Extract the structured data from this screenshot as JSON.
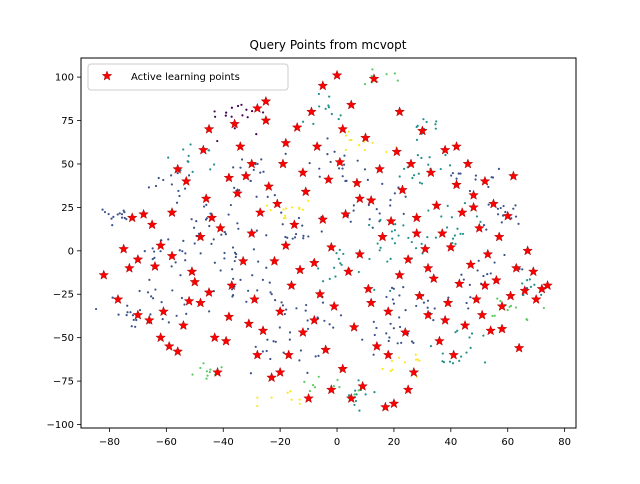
{
  "chart_data": {
    "type": "scatter",
    "title": "Query Points from mcvopt",
    "xlabel": "",
    "ylabel": "",
    "xlim": [
      -90,
      84
    ],
    "ylim": [
      -102,
      111
    ],
    "xticks": [
      -80,
      -60,
      -40,
      -20,
      0,
      20,
      40,
      60,
      80
    ],
    "xtick_labels": [
      "−80",
      "−60",
      "−40",
      "−20",
      "0",
      "20",
      "40",
      "60",
      "80"
    ],
    "yticks": [
      -100,
      -75,
      -50,
      -25,
      0,
      25,
      50,
      75,
      100
    ],
    "ytick_labels": [
      "−100",
      "−75",
      "−50",
      "−25",
      "0",
      "25",
      "50",
      "75",
      "100"
    ],
    "grid": false,
    "legend": {
      "location": "upper-left",
      "entries": [
        "Active learning points"
      ]
    },
    "colors": {
      "marker": "#ff0000",
      "marker_edge": "#8b0000",
      "background_palette": [
        "#440154",
        "#3b528b",
        "#21918c",
        "#5ec962",
        "#fde725"
      ]
    },
    "background_clusters": [
      {
        "cx": -78,
        "cy": 20,
        "n": 14,
        "s": 2,
        "c": 1
      },
      {
        "cx": -72,
        "cy": -38,
        "n": 14,
        "s": 3,
        "c": 1
      },
      {
        "cx": -60,
        "cy": 38,
        "n": 12,
        "s": 3,
        "c": 1
      },
      {
        "cx": -58,
        "cy": -28,
        "n": 18,
        "s": 4,
        "c": 1
      },
      {
        "cx": -50,
        "cy": 52,
        "n": 12,
        "s": 3,
        "c": 2
      },
      {
        "cx": -48,
        "cy": 15,
        "n": 18,
        "s": 4,
        "c": 1
      },
      {
        "cx": -44,
        "cy": -68,
        "n": 10,
        "s": 2,
        "c": 3
      },
      {
        "cx": -40,
        "cy": 0,
        "n": 18,
        "s": 4,
        "c": 1
      },
      {
        "cx": -35,
        "cy": 78,
        "n": 16,
        "s": 4,
        "c": 0
      },
      {
        "cx": -30,
        "cy": -20,
        "n": 18,
        "s": 4,
        "c": 1
      },
      {
        "cx": -25,
        "cy": 40,
        "n": 18,
        "s": 4,
        "c": 1
      },
      {
        "cx": -20,
        "cy": -60,
        "n": 16,
        "s": 4,
        "c": 1
      },
      {
        "cx": -12,
        "cy": 10,
        "n": 18,
        "s": 4,
        "c": 1
      },
      {
        "cx": -10,
        "cy": -35,
        "n": 18,
        "s": 4,
        "c": 1
      },
      {
        "cx": -5,
        "cy": 80,
        "n": 12,
        "s": 3,
        "c": 2
      },
      {
        "cx": 0,
        "cy": 50,
        "n": 18,
        "s": 4,
        "c": 1
      },
      {
        "cx": 5,
        "cy": -10,
        "n": 18,
        "s": 4,
        "c": 2
      },
      {
        "cx": 8,
        "cy": -85,
        "n": 12,
        "s": 3,
        "c": 2
      },
      {
        "cx": 12,
        "cy": 25,
        "n": 18,
        "s": 4,
        "c": 1
      },
      {
        "cx": 18,
        "cy": -50,
        "n": 18,
        "s": 4,
        "c": 1
      },
      {
        "cx": 20,
        "cy": 5,
        "n": 18,
        "s": 4,
        "c": 2
      },
      {
        "cx": 28,
        "cy": 45,
        "n": 16,
        "s": 4,
        "c": 2
      },
      {
        "cx": 30,
        "cy": -30,
        "n": 18,
        "s": 4,
        "c": 1
      },
      {
        "cx": 32,
        "cy": 70,
        "n": 10,
        "s": 2,
        "c": 2
      },
      {
        "cx": 40,
        "cy": 15,
        "n": 18,
        "s": 4,
        "c": 2
      },
      {
        "cx": 42,
        "cy": -55,
        "n": 16,
        "s": 4,
        "c": 2
      },
      {
        "cx": 48,
        "cy": 40,
        "n": 14,
        "s": 4,
        "c": 1
      },
      {
        "cx": 52,
        "cy": -15,
        "n": 16,
        "s": 4,
        "c": 1
      },
      {
        "cx": 58,
        "cy": 20,
        "n": 14,
        "s": 3,
        "c": 1
      },
      {
        "cx": 62,
        "cy": -35,
        "n": 12,
        "s": 3,
        "c": 3
      },
      {
        "cx": 68,
        "cy": -20,
        "n": 8,
        "s": 2,
        "c": 2
      },
      {
        "cx": 0,
        "cy": -75,
        "n": 12,
        "s": 3,
        "c": 3
      },
      {
        "cx": -20,
        "cy": -85,
        "n": 8,
        "s": 2,
        "c": 4
      },
      {
        "cx": 15,
        "cy": 100,
        "n": 8,
        "s": 2,
        "c": 3
      },
      {
        "cx": -60,
        "cy": 0,
        "n": 14,
        "s": 3,
        "c": 1
      },
      {
        "cx": 10,
        "cy": 60,
        "n": 12,
        "s": 3,
        "c": 4
      },
      {
        "cx": -15,
        "cy": 25,
        "n": 12,
        "s": 3,
        "c": 4
      },
      {
        "cx": 25,
        "cy": -65,
        "n": 12,
        "s": 3,
        "c": 4
      }
    ],
    "active_points": [
      [
        -82,
        -14
      ],
      [
        -75,
        1
      ],
      [
        -73,
        -10
      ],
      [
        -72,
        19
      ],
      [
        -70,
        -37
      ],
      [
        -68,
        21
      ],
      [
        -66,
        -40
      ],
      [
        -64,
        -9
      ],
      [
        -62,
        3
      ],
      [
        -61,
        -35
      ],
      [
        -59,
        -55
      ],
      [
        -58,
        -3
      ],
      [
        -56,
        -58
      ],
      [
        -56,
        47
      ],
      [
        -54,
        -43
      ],
      [
        -52,
        -29
      ],
      [
        -51,
        -12
      ],
      [
        -50,
        -18
      ],
      [
        -48,
        -30
      ],
      [
        -47,
        58
      ],
      [
        -46,
        30
      ],
      [
        -45,
        -24
      ],
      [
        -44,
        19
      ],
      [
        -42,
        -70
      ],
      [
        -41,
        13
      ],
      [
        -39,
        -52
      ],
      [
        -38,
        42
      ],
      [
        -37,
        -20
      ],
      [
        -36,
        73
      ],
      [
        -34,
        60
      ],
      [
        -33,
        -6
      ],
      [
        -32,
        43
      ],
      [
        -31,
        -42
      ],
      [
        -30,
        10
      ],
      [
        -29,
        -28
      ],
      [
        -28,
        82
      ],
      [
        -27,
        22
      ],
      [
        -26,
        -46
      ],
      [
        -25,
        86
      ],
      [
        -24,
        37
      ],
      [
        -23,
        -73
      ],
      [
        -22,
        -6
      ],
      [
        -21,
        27
      ],
      [
        -20,
        -35
      ],
      [
        -19,
        50
      ],
      [
        -18,
        3
      ],
      [
        -17,
        -60
      ],
      [
        -16,
        -20
      ],
      [
        -15,
        15
      ],
      [
        -14,
        71
      ],
      [
        -13,
        -11
      ],
      [
        -12,
        -47
      ],
      [
        -11,
        34
      ],
      [
        -10,
        -85
      ],
      [
        -9,
        80
      ],
      [
        -8,
        -7
      ],
      [
        -7,
        60
      ],
      [
        -6,
        -25
      ],
      [
        -5,
        18
      ],
      [
        -4,
        -57
      ],
      [
        -3,
        41
      ],
      [
        -2,
        2
      ],
      [
        -1,
        -32
      ],
      [
        0,
        101
      ],
      [
        1,
        51
      ],
      [
        2,
        -68
      ],
      [
        3,
        21
      ],
      [
        4,
        -12
      ],
      [
        5,
        84
      ],
      [
        6,
        -44
      ],
      [
        7,
        39
      ],
      [
        8,
        -2
      ],
      [
        9,
        -78
      ],
      [
        10,
        65
      ],
      [
        11,
        -22
      ],
      [
        12,
        29
      ],
      [
        13,
        99
      ],
      [
        14,
        -55
      ],
      [
        15,
        47
      ],
      [
        16,
        8
      ],
      [
        17,
        -90
      ],
      [
        18,
        -35
      ],
      [
        19,
        17
      ],
      [
        20,
        -88
      ],
      [
        21,
        57
      ],
      [
        22,
        -14
      ],
      [
        23,
        35
      ],
      [
        24,
        -47
      ],
      [
        25,
        -5
      ],
      [
        26,
        50
      ],
      [
        27,
        -70
      ],
      [
        28,
        19
      ],
      [
        29,
        -26
      ],
      [
        30,
        69
      ],
      [
        31,
        1
      ],
      [
        32,
        -37
      ],
      [
        33,
        45
      ],
      [
        34,
        -16
      ],
      [
        35,
        26
      ],
      [
        36,
        -52
      ],
      [
        37,
        10
      ],
      [
        38,
        58
      ],
      [
        39,
        -30
      ],
      [
        40,
        2
      ],
      [
        41,
        -60
      ],
      [
        42,
        38
      ],
      [
        43,
        -19
      ],
      [
        44,
        22
      ],
      [
        45,
        -43
      ],
      [
        46,
        50
      ],
      [
        47,
        -8
      ],
      [
        48,
        32
      ],
      [
        49,
        -28
      ],
      [
        50,
        13
      ],
      [
        51,
        -37
      ],
      [
        52,
        40
      ],
      [
        53,
        -2
      ],
      [
        54,
        -46
      ],
      [
        55,
        27
      ],
      [
        56,
        -17
      ],
      [
        57,
        8
      ],
      [
        58,
        -32
      ],
      [
        60,
        20
      ],
      [
        61,
        -26
      ],
      [
        62,
        43
      ],
      [
        63,
        -10
      ],
      [
        64,
        -56
      ],
      [
        66,
        -23
      ],
      [
        67,
        0
      ],
      [
        69,
        -12
      ],
      [
        70,
        -28
      ],
      [
        72,
        -22
      ],
      [
        74,
        -20
      ],
      [
        -65,
        15
      ],
      [
        -53,
        40
      ],
      [
        -43,
        -50
      ],
      [
        -35,
        33
      ],
      [
        -28,
        -60
      ],
      [
        -18,
        62
      ],
      [
        -8,
        -40
      ],
      [
        2,
        70
      ],
      [
        12,
        -30
      ],
      [
        22,
        80
      ],
      [
        32,
        -10
      ],
      [
        42,
        60
      ],
      [
        52,
        -20
      ],
      [
        -70,
        -5
      ],
      [
        -58,
        22
      ],
      [
        -48,
        8
      ],
      [
        -38,
        -38
      ],
      [
        -30,
        50
      ],
      [
        -20,
        -70
      ],
      [
        -12,
        45
      ],
      [
        -2,
        -80
      ],
      [
        8,
        30
      ],
      [
        18,
        -60
      ],
      [
        28,
        10
      ],
      [
        38,
        -40
      ],
      [
        48,
        25
      ],
      [
        58,
        -45
      ],
      [
        -77,
        -28
      ],
      [
        -62,
        -50
      ],
      [
        -45,
        70
      ],
      [
        -25,
        75
      ],
      [
        -5,
        95
      ],
      [
        5,
        -85
      ],
      [
        25,
        -80
      ]
    ]
  }
}
